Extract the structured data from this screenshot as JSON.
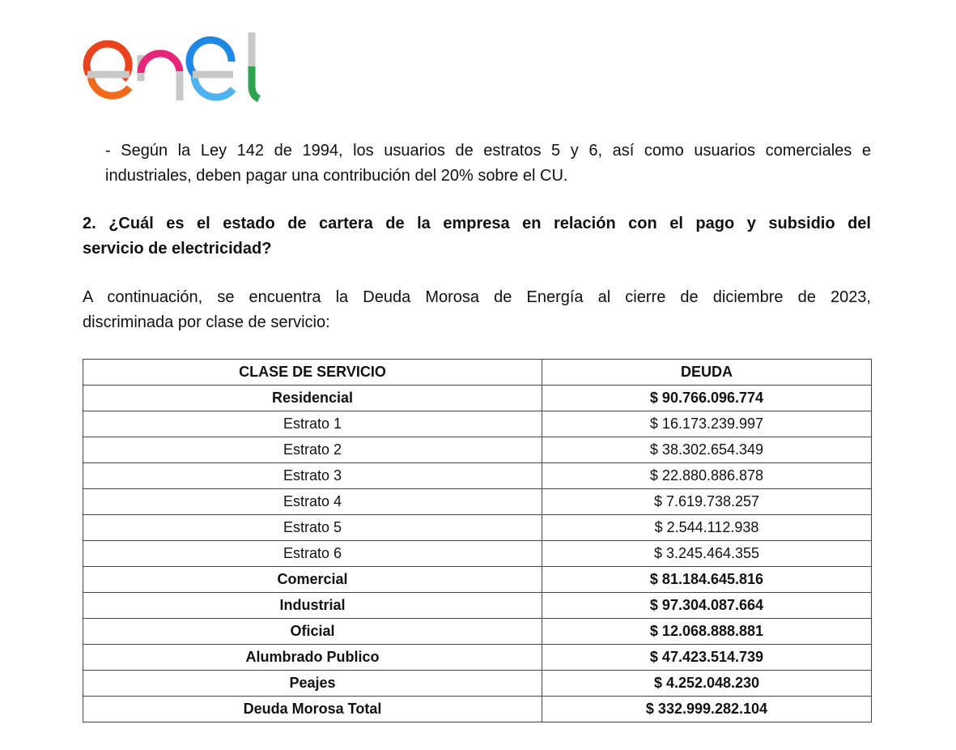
{
  "logo": {
    "text": "enel",
    "colors": {
      "e1": "#e8431c",
      "n": "#e6267a",
      "e2": "#1e88e5",
      "l": "#2ea44f",
      "grey": "#c8c8c8"
    }
  },
  "bullet_lines": [
    "- Según la Ley 142 de 1994, los usuarios de estratos 5 y 6, así como usuarios comerciales e",
    "industriales, deben pagar una contribución del 20% sobre el CU."
  ],
  "heading_lines": [
    "2. ¿Cuál es el estado de cartera de la empresa en relación con el pago y subsidio del",
    "servicio de electricidad?"
  ],
  "paragraph_lines": [
    "A continuación, se encuentra la Deuda Morosa de Energía al cierre de diciembre de 2023,",
    "discriminada por clase de servicio:"
  ],
  "table": {
    "headers": [
      "CLASE DE SERVICIO",
      "DEUDA"
    ],
    "rows": [
      {
        "clase": "Residencial",
        "deuda": "$ 90.766.096.774",
        "bold": true
      },
      {
        "clase": "Estrato 1",
        "deuda": "$ 16.173.239.997",
        "bold": false
      },
      {
        "clase": "Estrato 2",
        "deuda": "$ 38.302.654.349",
        "bold": false
      },
      {
        "clase": "Estrato 3",
        "deuda": "$ 22.880.886.878",
        "bold": false
      },
      {
        "clase": "Estrato 4",
        "deuda": "$ 7.619.738.257",
        "bold": false
      },
      {
        "clase": "Estrato 5",
        "deuda": "$ 2.544.112.938",
        "bold": false
      },
      {
        "clase": "Estrato 6",
        "deuda": "$ 3.245.464.355",
        "bold": false
      },
      {
        "clase": "Comercial",
        "deuda": "$ 81.184.645.816",
        "bold": true
      },
      {
        "clase": "Industrial",
        "deuda": "$ 97.304.087.664",
        "bold": true
      },
      {
        "clase": "Oficial",
        "deuda": "$ 12.068.888.881",
        "bold": true
      },
      {
        "clase": "Alumbrado Publico",
        "deuda": "$ 47.423.514.739",
        "bold": true
      },
      {
        "clase": "Peajes",
        "deuda": "$ 4.252.048.230",
        "bold": true
      },
      {
        "clase": "Deuda Morosa Total",
        "deuda": "$ 332.999.282.104",
        "bold": true
      }
    ]
  }
}
